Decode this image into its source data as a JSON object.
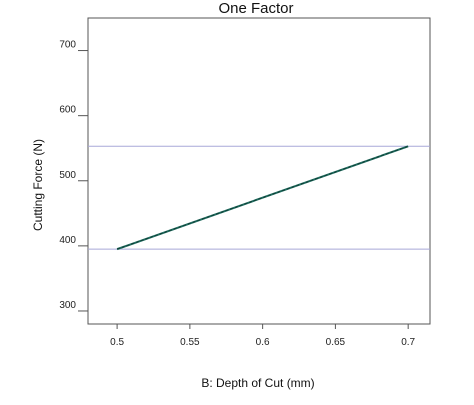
{
  "chart_data": {
    "type": "line",
    "title": "One Factor",
    "xlabel": "B: Depth of Cut (mm)",
    "ylabel": "Cutting Force (N)",
    "xlim": [
      0.48,
      0.715
    ],
    "ylim": [
      280,
      750
    ],
    "xticks": [
      0.5,
      0.55,
      0.6,
      0.65,
      0.7
    ],
    "xtick_labels": [
      "0.5",
      "0.55",
      "0.6",
      "0.65",
      "0.7"
    ],
    "yticks": [
      300,
      400,
      500,
      600,
      700
    ],
    "ytick_labels": [
      "300",
      "400",
      "500",
      "600",
      "700"
    ],
    "reference_lines": [
      395,
      553
    ],
    "series": [
      {
        "x": [
          0.5,
          0.7
        ],
        "y": [
          395,
          553
        ]
      }
    ],
    "grid": false,
    "colors": {
      "line": "#1f6b5e",
      "reference": "#a8a8d8",
      "axis": "#555555"
    }
  }
}
